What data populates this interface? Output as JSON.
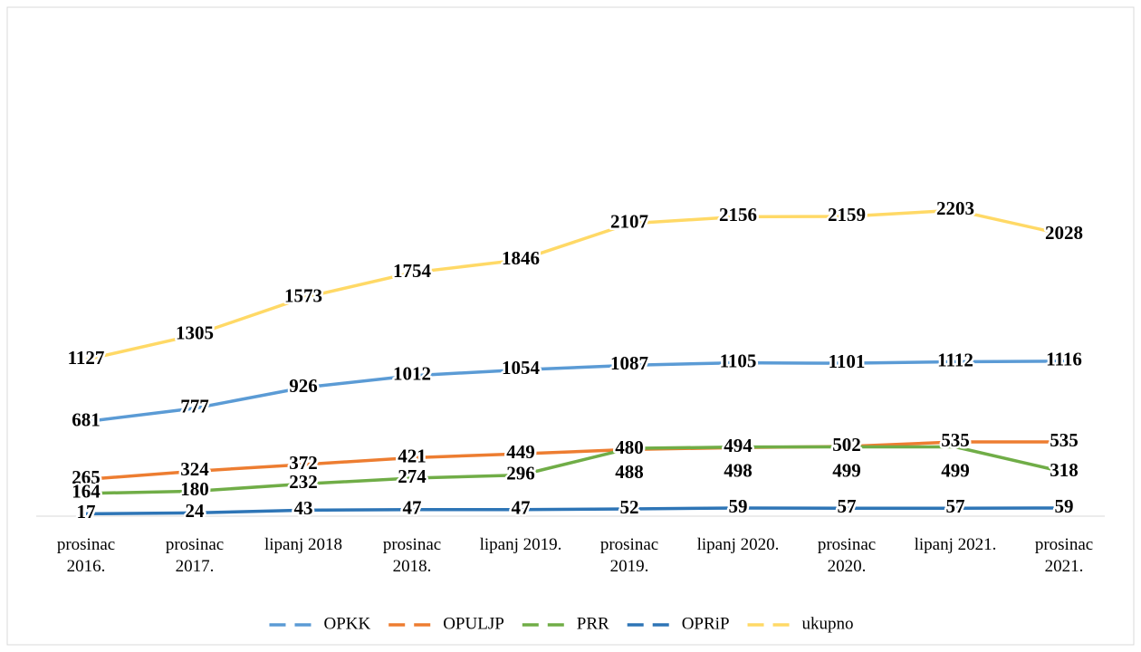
{
  "chart_data": {
    "type": "line",
    "categories": [
      "prosinac 2016.",
      "prosinac 2017.",
      "lipanj 2018",
      "prosinac 2018.",
      "lipanj 2019.",
      "prosinac 2019.",
      "lipanj 2020.",
      "prosinac 2020.",
      "lipanj 2021.",
      "prosinac 2021."
    ],
    "series": [
      {
        "name": "OPKK",
        "color": "#5b9bd5",
        "values": [
          681,
          777,
          926,
          1012,
          1054,
          1087,
          1105,
          1101,
          1112,
          1116
        ]
      },
      {
        "name": "OPULJP",
        "color": "#ed7d31",
        "values": [
          265,
          324,
          372,
          421,
          449,
          480,
          494,
          502,
          535,
          535
        ]
      },
      {
        "name": "PRR",
        "color": "#70ad47",
        "values": [
          164,
          180,
          232,
          274,
          296,
          488,
          498,
          499,
          499,
          318
        ]
      },
      {
        "name": "OPRiP",
        "color": "#2e75b6",
        "values": [
          17,
          24,
          43,
          47,
          47,
          52,
          59,
          57,
          57,
          59
        ]
      },
      {
        "name": "ukupno",
        "color": "#ffd966",
        "values": [
          1127,
          1305,
          1573,
          1754,
          1846,
          2107,
          2156,
          2159,
          2203,
          2028
        ]
      }
    ],
    "ylim": [
      0,
      3000
    ],
    "legend": "bottom"
  }
}
